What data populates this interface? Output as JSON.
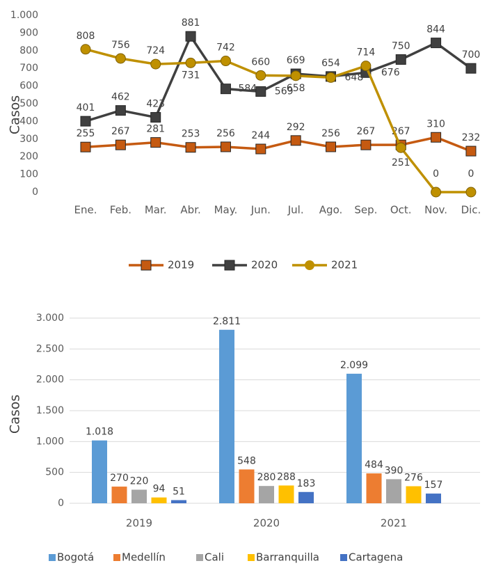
{
  "chart_data": [
    {
      "type": "line",
      "ylabel": "Casos",
      "categories": [
        "Ene.",
        "Feb.",
        "Mar.",
        "Abr.",
        "May.",
        "Jun.",
        "Jul.",
        "Ago.",
        "Sep.",
        "Oct.",
        "Nov.",
        "Dic."
      ],
      "ylim": [
        0,
        1000
      ],
      "yticks": [
        0,
        100,
        200,
        300,
        400,
        500,
        600,
        700,
        800,
        900,
        {
          "value": 1000,
          "label": "1.000"
        }
      ],
      "grid": false,
      "legend": "bottom",
      "series": [
        {
          "name": "2019",
          "color": "#c55a11",
          "marker": "square",
          "values": [
            255,
            267,
            281,
            253,
            256,
            244,
            292,
            256,
            267,
            267,
            310,
            232
          ]
        },
        {
          "name": "2020",
          "color": "#404040",
          "marker": "square",
          "values": [
            401,
            462,
            423,
            881,
            584,
            569,
            669,
            654,
            676,
            750,
            844,
            700
          ]
        },
        {
          "name": "2021",
          "color": "#bf9000",
          "marker": "circle",
          "values": [
            808,
            756,
            724,
            731,
            742,
            660,
            658,
            648,
            714,
            251,
            0,
            0
          ]
        }
      ]
    },
    {
      "type": "bar",
      "ylabel": "Casos",
      "categories": [
        "2019",
        "2020",
        "2021"
      ],
      "ylim": [
        0,
        3000
      ],
      "yticks": [
        0,
        500,
        {
          "value": 1000,
          "label": "1.000"
        },
        {
          "value": 1500,
          "label": "1.500"
        },
        {
          "value": 2000,
          "label": "2.000"
        },
        {
          "value": 2500,
          "label": "2.500"
        },
        {
          "value": 3000,
          "label": "3.000"
        }
      ],
      "grid": true,
      "legend": "bottom",
      "series": [
        {
          "name": "Bogotá",
          "color": "#5b9bd5",
          "values": [
            1018,
            2811,
            2099
          ],
          "value_labels": [
            "1.018",
            "2.811",
            "2.099"
          ]
        },
        {
          "name": "Medellín",
          "color": "#ed7d31",
          "values": [
            270,
            548,
            484
          ]
        },
        {
          "name": "Cali",
          "color": "#a5a5a5",
          "values": [
            220,
            280,
            390
          ]
        },
        {
          "name": "Barranquilla",
          "color": "#ffc000",
          "values": [
            94,
            288,
            276
          ]
        },
        {
          "name": "Cartagena",
          "color": "#4472c4",
          "values": [
            51,
            183,
            157
          ]
        }
      ]
    }
  ]
}
